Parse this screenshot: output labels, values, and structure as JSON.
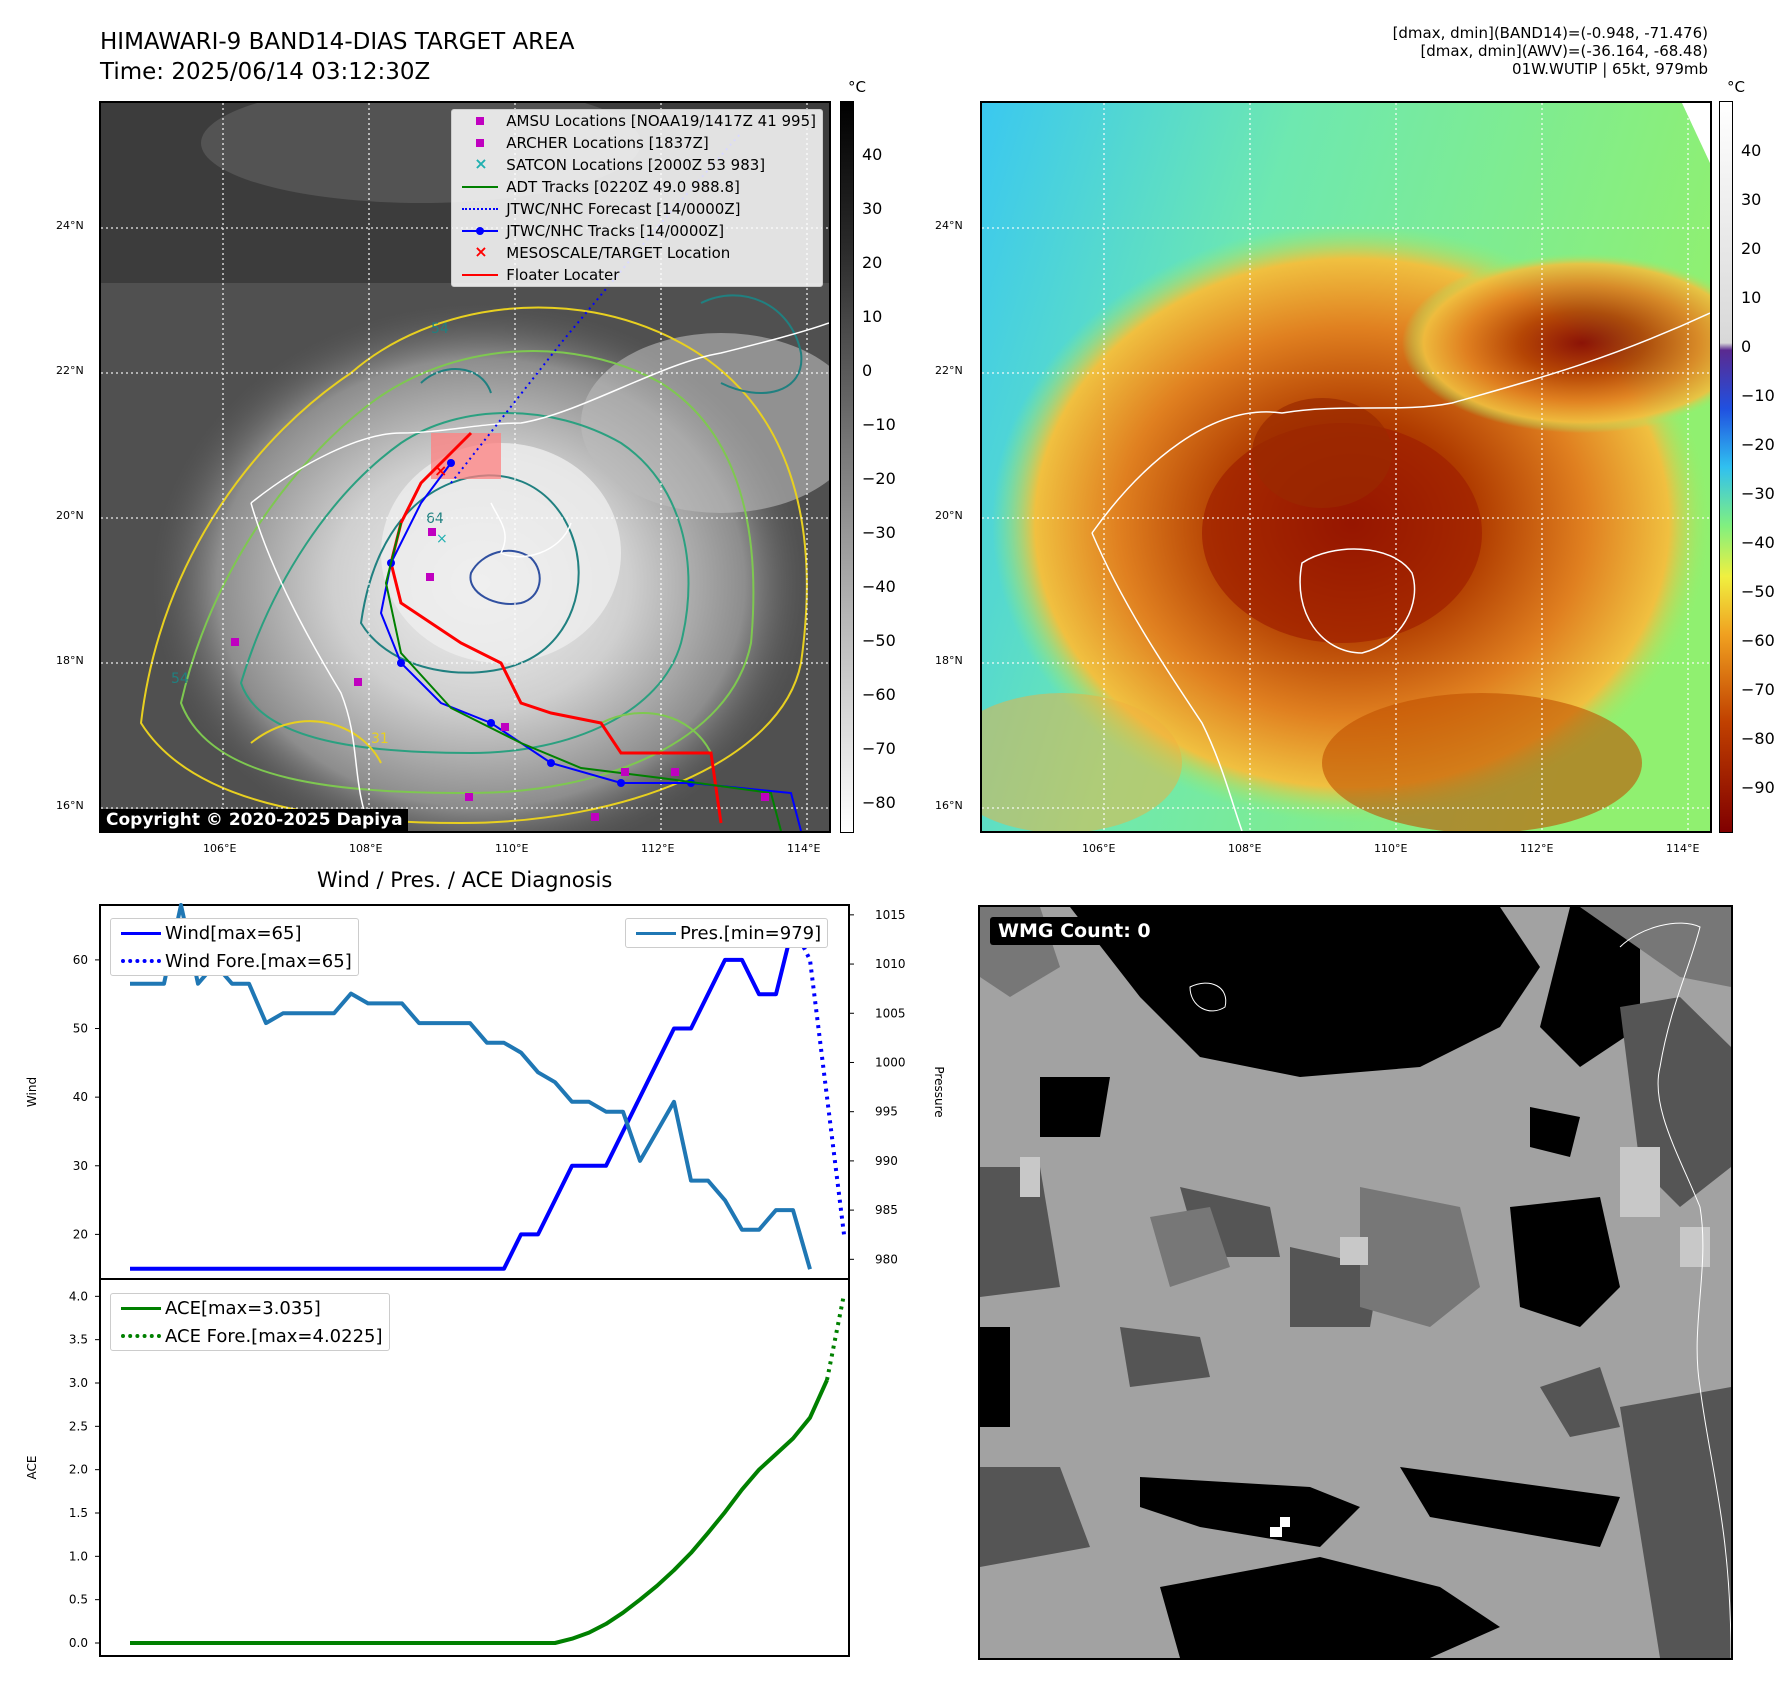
{
  "header": {
    "title": "HIMAWARI-9 BAND14-DIAS TARGET AREA",
    "time": "Time: 2025/06/14 03:12:30Z",
    "meta_lines": [
      "[dmax, dmin](BAND14)=(-0.948, -71.476)",
      "[dmax, dmin](AWV)=(-36.164, -68.48)",
      "01W.WUTIP | 65kt, 979mb"
    ]
  },
  "map": {
    "lat_labels": [
      "24°N",
      "22°N",
      "20°N",
      "18°N",
      "16°N"
    ],
    "lon_labels": [
      "106°E",
      "108°E",
      "110°E",
      "112°E",
      "114°E"
    ],
    "unit": "°C",
    "left_colorbar_ticks": [
      "40",
      "30",
      "20",
      "10",
      "0",
      "−10",
      "−20",
      "−30",
      "−40",
      "−50",
      "−60",
      "−70",
      "−80"
    ],
    "right_colorbar_ticks": [
      "40",
      "30",
      "20",
      "10",
      "0",
      "−10",
      "−20",
      "−30",
      "−40",
      "−50",
      "−60",
      "−70",
      "−80",
      "−90"
    ],
    "contour_labels": [
      "54",
      "64",
      "54",
      "31"
    ],
    "copyright": "Copyright © 2020-2025 Dapiya",
    "legend": [
      {
        "label": "AMSU Locations [NOAA19/1417Z 41 995]",
        "kind": "square",
        "color": "#c000c0"
      },
      {
        "label": "ARCHER Locations [1837Z]",
        "kind": "square",
        "color": "#c000c0"
      },
      {
        "label": "SATCON Locations [2000Z 53 983]",
        "kind": "x",
        "color": "#20b0b0"
      },
      {
        "label": "ADT Tracks [0220Z 49.0 988.8]",
        "kind": "line",
        "color": "#008000"
      },
      {
        "label": "JTWC/NHC Forecast [14/0000Z]",
        "kind": "dotted",
        "color": "#0000ff"
      },
      {
        "label": "JTWC/NHC Tracks [14/0000Z]",
        "kind": "line-dot",
        "color": "#0000ff"
      },
      {
        "label": "MESOSCALE/TARGET Location",
        "kind": "x",
        "color": "#ff0000"
      },
      {
        "label": "Floater Locater",
        "kind": "line",
        "color": "#ff0000"
      }
    ],
    "colors": {
      "amsu": "#c000c0",
      "jtwc": "#0000ff",
      "adt": "#008000",
      "floater": "#ff0000",
      "target": "#ff0000"
    }
  },
  "diag_title": "Wind / Pres. / ACE Diagnosis",
  "wmg": {
    "label": "WMG Count: 0"
  },
  "chart_data": [
    {
      "type": "line",
      "x": [
        0,
        1,
        2,
        3,
        4,
        5,
        6,
        7,
        8,
        9,
        10,
        11,
        12,
        13,
        14,
        15,
        16,
        17,
        18,
        19,
        20,
        21,
        22,
        23,
        24,
        25,
        26,
        27,
        28,
        29,
        30,
        31,
        32,
        33,
        34,
        35,
        36,
        37,
        38,
        39,
        40,
        41,
        42
      ],
      "ylabel": "Wind",
      "y2label": "Pressure",
      "ylim": [
        13.5,
        68
      ],
      "y2lim": [
        978,
        1016
      ],
      "yticks": [
        20,
        30,
        40,
        50,
        60
      ],
      "y2ticks": [
        980,
        985,
        990,
        995,
        1000,
        1005,
        1010,
        1015
      ],
      "series": [
        {
          "name": "Wind[max=65]",
          "axis": "left",
          "style": "solid",
          "color": "#0000ff",
          "values": [
            15,
            15,
            15,
            15,
            15,
            15,
            15,
            15,
            15,
            15,
            15,
            15,
            15,
            15,
            15,
            15,
            15,
            15,
            15,
            15,
            15,
            15,
            15,
            20,
            20,
            25,
            30,
            30,
            30,
            35,
            40,
            45,
            50,
            50,
            55,
            60,
            60,
            55,
            55,
            65,
            null,
            null,
            null
          ]
        },
        {
          "name": "Wind Fore.[max=65]",
          "axis": "left",
          "style": "dotted",
          "color": "#0000ff",
          "values": [
            null,
            null,
            null,
            null,
            null,
            null,
            null,
            null,
            null,
            null,
            null,
            null,
            null,
            null,
            null,
            null,
            null,
            null,
            null,
            null,
            null,
            null,
            null,
            null,
            null,
            null,
            null,
            null,
            null,
            null,
            null,
            null,
            null,
            null,
            null,
            null,
            null,
            null,
            null,
            65,
            60,
            40,
            20
          ]
        },
        {
          "name": "Pres.[min=979]",
          "axis": "right",
          "style": "solid",
          "color": "#1f77b4",
          "values": [
            1008,
            1008,
            1008,
            1016,
            1008,
            1010,
            1008,
            1008,
            1004,
            1005,
            1005,
            1005,
            1005,
            1007,
            1006,
            1006,
            1006,
            1004,
            1004,
            1004,
            1004,
            1002,
            1002,
            1001,
            999,
            998,
            996,
            996,
            995,
            995,
            990,
            993,
            996,
            988,
            988,
            986,
            983,
            983,
            985,
            985,
            979,
            null,
            null
          ]
        }
      ]
    },
    {
      "type": "line",
      "x": [
        0,
        1,
        2,
        3,
        4,
        5,
        6,
        7,
        8,
        9,
        10,
        11,
        12,
        13,
        14,
        15,
        16,
        17,
        18,
        19,
        20,
        21,
        22,
        23,
        24,
        25,
        26,
        27,
        28,
        29,
        30,
        31,
        32,
        33,
        34,
        35,
        36,
        37,
        38,
        39,
        40,
        41,
        42
      ],
      "ylabel": "ACE",
      "ylim": [
        -0.15,
        4.2
      ],
      "yticks": [
        0.0,
        0.5,
        1.0,
        1.5,
        2.0,
        2.5,
        3.0,
        3.5,
        4.0
      ],
      "ytick_labels": [
        "0.0",
        "0.5",
        "1.0",
        "1.5",
        "2.0",
        "2.5",
        "3.0",
        "3.5",
        "4.0"
      ],
      "series": [
        {
          "name": "ACE[max=3.035]",
          "style": "solid",
          "color": "#008000",
          "values": [
            0,
            0,
            0,
            0,
            0,
            0,
            0,
            0,
            0,
            0,
            0,
            0,
            0,
            0,
            0,
            0,
            0,
            0,
            0,
            0,
            0,
            0,
            0,
            0,
            0,
            0,
            0.05,
            0.12,
            0.22,
            0.35,
            0.5,
            0.66,
            0.84,
            1.04,
            1.27,
            1.51,
            1.77,
            2.0,
            2.18,
            2.36,
            2.6,
            3.035,
            null
          ]
        },
        {
          "name": "ACE Fore.[max=4.0225]",
          "style": "dotted",
          "color": "#008000",
          "values": [
            null,
            null,
            null,
            null,
            null,
            null,
            null,
            null,
            null,
            null,
            null,
            null,
            null,
            null,
            null,
            null,
            null,
            null,
            null,
            null,
            null,
            null,
            null,
            null,
            null,
            null,
            null,
            null,
            null,
            null,
            null,
            null,
            null,
            null,
            null,
            null,
            null,
            null,
            null,
            null,
            null,
            3.035,
            4.0225
          ]
        }
      ]
    }
  ]
}
